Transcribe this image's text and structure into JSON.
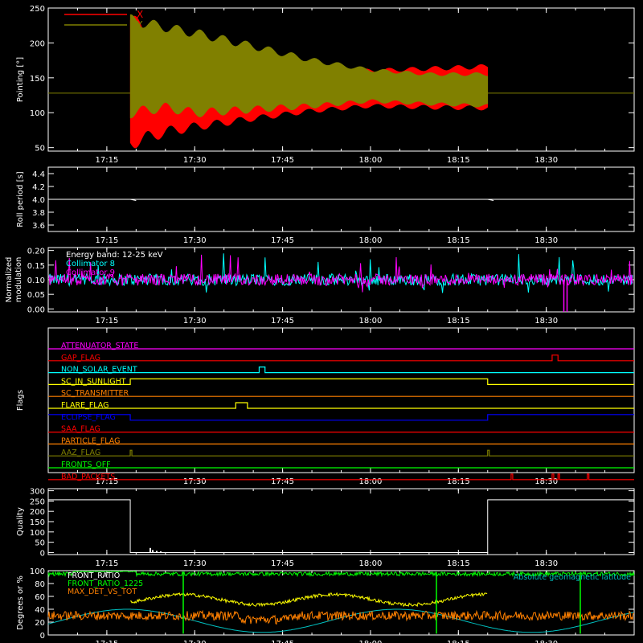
{
  "chart_data": [
    {
      "type": "line",
      "id": "pointing",
      "ylabel": "Pointing [°]",
      "ylim": [
        45,
        250
      ],
      "yticks": [
        50,
        100,
        150,
        200,
        250
      ],
      "xticks": [
        "17:15",
        "17:30",
        "17:45",
        "18:00",
        "18:15",
        "18:30"
      ],
      "legend": [
        {
          "name": "X",
          "color": "#ff0000"
        },
        {
          "name": "Y",
          "color": "#808000"
        }
      ],
      "baseline": 128,
      "start_time": "17:19",
      "end_time": "18:20",
      "series": [
        {
          "name": "X",
          "color": "#ff0000",
          "envelope": [
            {
              "t": "17:19",
              "upper": 233,
              "lower": 57
            },
            {
              "t": "17:25",
              "upper": 202,
              "lower": 73
            },
            {
              "t": "17:30",
              "upper": 187,
              "lower": 80
            },
            {
              "t": "17:40",
              "upper": 165,
              "lower": 92
            },
            {
              "t": "17:50",
              "upper": 159,
              "lower": 103
            },
            {
              "t": "18:00",
              "upper": 160,
              "lower": 110
            },
            {
              "t": "18:10",
              "upper": 163,
              "lower": 108
            },
            {
              "t": "18:20",
              "upper": 166,
              "lower": 107
            }
          ]
        },
        {
          "name": "Y",
          "color": "#808000",
          "envelope": [
            {
              "t": "17:19",
              "upper": 233,
              "lower": 100
            },
            {
              "t": "17:25",
              "upper": 222,
              "lower": 108
            },
            {
              "t": "17:30",
              "upper": 214,
              "lower": 100
            },
            {
              "t": "17:40",
              "upper": 195,
              "lower": 105
            },
            {
              "t": "17:50",
              "upper": 175,
              "lower": 110
            },
            {
              "t": "18:00",
              "upper": 161,
              "lower": 117
            },
            {
              "t": "18:10",
              "upper": 155,
              "lower": 113
            },
            {
              "t": "18:20",
              "upper": 155,
              "lower": 110
            }
          ]
        }
      ]
    },
    {
      "type": "line",
      "id": "roll",
      "ylabel": "Roll period [s]",
      "ylim": [
        3.5,
        4.5
      ],
      "yticks": [
        "3.6",
        "3.8",
        "4.0",
        "4.2",
        "4.4"
      ],
      "xticks": [
        "17:15",
        "17:30",
        "17:45",
        "18:00",
        "18:15",
        "18:30"
      ],
      "series": [
        {
          "name": "",
          "color": "#ffffff",
          "value": 4.0
        }
      ]
    },
    {
      "type": "line",
      "id": "modulation",
      "ylabel": "Normalized modulation",
      "ylim": [
        -0.01,
        0.21
      ],
      "yticks": [
        "0.00",
        "0.05",
        "0.10",
        "0.15",
        "0.20"
      ],
      "xticks": [
        "17:15",
        "17:30",
        "17:45",
        "18:00",
        "18:15",
        "18:30"
      ],
      "annotations": [
        "Energy band: 12-25 keV",
        "Collimator 8",
        "Collimator 9"
      ],
      "series": [
        {
          "name": "Collimator 8",
          "color": "#00ffff",
          "mean": 0.1
        },
        {
          "name": "Collimator 9",
          "color": "#ff00ff",
          "mean": 0.1
        }
      ]
    },
    {
      "type": "line",
      "id": "flags",
      "ylabel": "Flags",
      "xticks": [
        "17:15",
        "17:30",
        "17:45",
        "18:00",
        "18:15",
        "18:30"
      ],
      "flags": [
        {
          "name": "ATTENUATOR_STATE",
          "color": "#ff00ff",
          "high": []
        },
        {
          "name": "GAP_FLAG",
          "color": "#ff0000",
          "high": [
            [
              "18:31",
              "18:32"
            ]
          ]
        },
        {
          "name": "NON_SOLAR_EVENT",
          "color": "#00ffff",
          "high": [
            [
              "17:41",
              "17:42"
            ]
          ]
        },
        {
          "name": "SC_IN_SUNLIGHT",
          "color": "#ffff00",
          "high": [
            [
              "17:19",
              "18:20"
            ]
          ]
        },
        {
          "name": "SC_TRANSMITTER",
          "color": "#ff8000",
          "high": []
        },
        {
          "name": "FLARE_FLAG",
          "color": "#ffff00",
          "high": [
            [
              "17:37",
              "17:39"
            ]
          ]
        },
        {
          "name": "ECLIPSE_FLAG",
          "color": "#0000ff",
          "high": [
            [
              "17:05",
              "17:19"
            ],
            [
              "18:20",
              "18:45"
            ]
          ]
        },
        {
          "name": "SAA_FLAG",
          "color": "#ff0000",
          "high": []
        },
        {
          "name": "PARTICLE_FLAG",
          "color": "#ff8000",
          "high": []
        },
        {
          "name": "AAZ_FLAG",
          "color": "#808000",
          "high": [
            [
              "17:19",
              "17:19"
            ],
            [
              "18:20",
              "18:20"
            ]
          ]
        },
        {
          "name": "FRONTS_OFF",
          "color": "#00ff00",
          "high": []
        },
        {
          "name": "BAD_PACKETS",
          "color": "#ff0000",
          "high": [
            [
              "18:24",
              "18:24"
            ],
            [
              "18:31",
              "18:31"
            ],
            [
              "18:32",
              "18:32"
            ],
            [
              "18:37",
              "18:37"
            ]
          ]
        }
      ]
    },
    {
      "type": "line",
      "id": "quality",
      "ylabel": "Quality",
      "ylim": [
        -10,
        310
      ],
      "yticks": [
        0,
        50,
        100,
        150,
        200,
        250,
        300
      ],
      "xticks": [
        "17:15",
        "17:30",
        "17:45",
        "18:00",
        "18:15",
        "18:30"
      ],
      "series": [
        {
          "name": "",
          "color": "#ffffff",
          "steps": [
            {
              "t": "17:05",
              "value": 256
            },
            {
              "t": "17:19",
              "value": 0
            },
            {
              "t": "18:20",
              "value": 256
            }
          ]
        }
      ]
    },
    {
      "type": "line",
      "id": "status",
      "ylabel": "Degrees or %",
      "ylim": [
        0,
        100
      ],
      "yticks": [
        0,
        20,
        40,
        60,
        80,
        100
      ],
      "xticks": [
        "17:15",
        "17:30",
        "17:45",
        "18:00",
        "18:15",
        "18:30"
      ],
      "annotations": [
        "Absolute geomagnetic latitude"
      ],
      "series": [
        {
          "name": "FRONT_RATIO",
          "color": "#ffffff",
          "mean": 92
        },
        {
          "name": "FRONT_RATIO_1225",
          "color": "#00ff00",
          "mean": 95
        },
        {
          "name": "MAX_DET_VS_TOT",
          "color": "#ff8000",
          "mean": 30
        },
        {
          "name": "",
          "color": "#ffff00",
          "mean": 55
        },
        {
          "name": "Absolute geomagnetic latitude",
          "color": "#00c0c0",
          "mean": 22
        }
      ]
    }
  ]
}
